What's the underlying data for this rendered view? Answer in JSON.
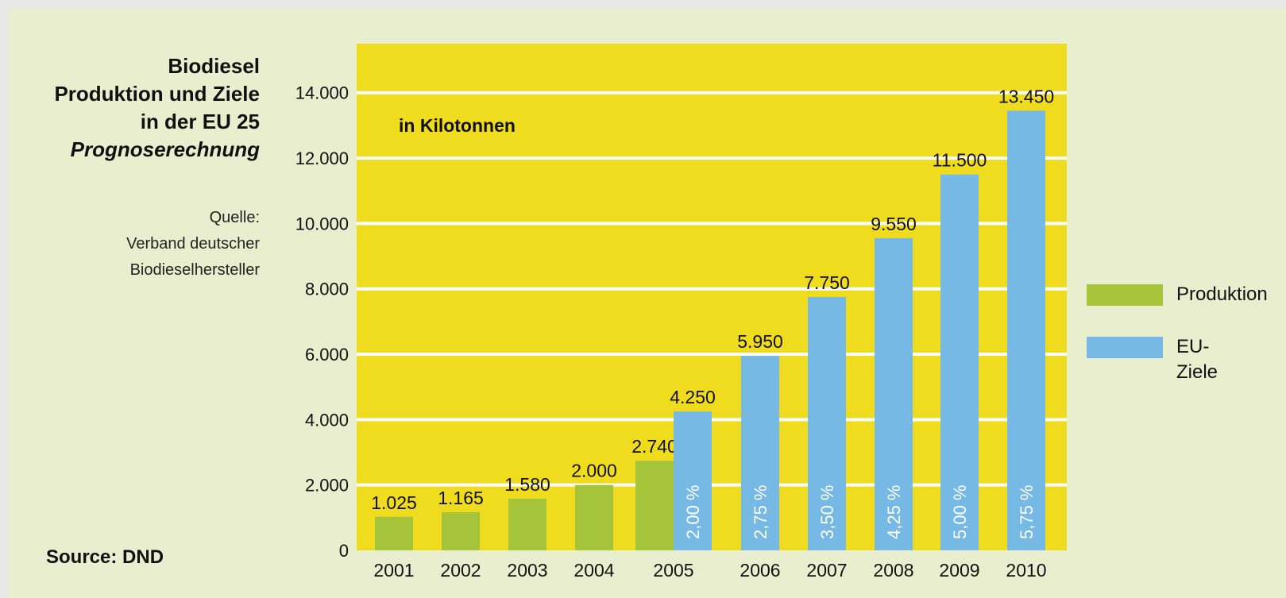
{
  "title": {
    "line1": "Biodiesel",
    "line2": "Produktion und Ziele",
    "line3": "in der EU 25",
    "line4": "Prognoserechnung"
  },
  "source": {
    "line1": "Quelle:",
    "line2": "Verband deutscher",
    "line3": "Biodieselhersteller"
  },
  "footer_source": "Source: DND",
  "legend": {
    "produktion": "Produktion",
    "eu_ziele": "EU-Ziele"
  },
  "colors": {
    "plot_background": "#efdc1e",
    "produktion": "#a5c43a",
    "eu_ziele": "#76b9e5",
    "gridline": "#ffffff"
  },
  "chart_data": {
    "type": "bar",
    "unit_label": "in Kilotonnen",
    "categories": [
      "2001",
      "2002",
      "2003",
      "2004",
      "2005",
      "2006",
      "2007",
      "2008",
      "2009",
      "2010"
    ],
    "series": [
      {
        "name": "Produktion",
        "values": [
          1025,
          1165,
          1580,
          2000,
          2740,
          null,
          null,
          null,
          null,
          null
        ],
        "labels": [
          "1.025",
          "1.165",
          "1.580",
          "2.000",
          "2.740",
          null,
          null,
          null,
          null,
          null
        ]
      },
      {
        "name": "EU-Ziele",
        "values": [
          null,
          null,
          null,
          null,
          4250,
          5950,
          7750,
          9550,
          11500,
          13450
        ],
        "labels": [
          null,
          null,
          null,
          null,
          "4.250",
          "5.950",
          "7.750",
          "9.550",
          "11.500",
          "13.450"
        ],
        "share_labels": [
          null,
          null,
          null,
          null,
          "2,00 %",
          "2,75 %",
          "3,50 %",
          "4,25 %",
          "5,00 %",
          "5,75 %"
        ]
      }
    ],
    "y_ticks": [
      0,
      2000,
      4000,
      6000,
      8000,
      10000,
      12000,
      14000
    ],
    "y_tick_labels": [
      "0",
      "2.000",
      "4.000",
      "6.000",
      "8.000",
      "10.000",
      "12.000",
      "14.000"
    ],
    "ylim": [
      0,
      15500
    ],
    "grid": true,
    "legend_position": "right"
  }
}
